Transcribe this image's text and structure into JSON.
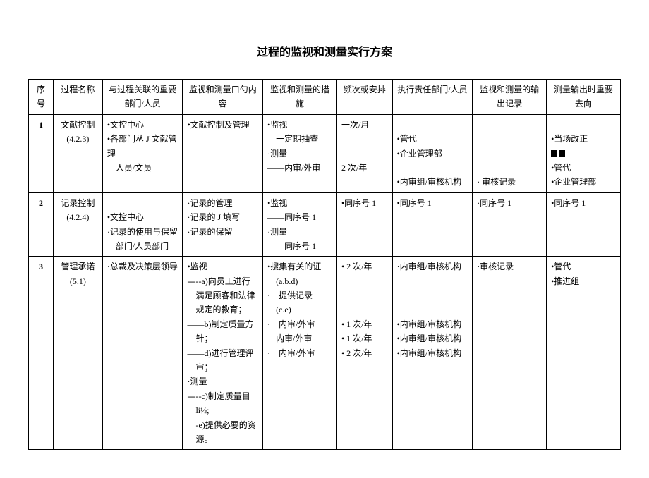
{
  "title": "过程的监视和测量实行方案",
  "headers": {
    "seq": "序号",
    "name": "过程名称",
    "dept": "与过程关联的重要部门/人员",
    "content": "监视和测量口勺内容",
    "measure": "监视和测量的措施",
    "freq": "频次或安排",
    "resp": "执行责任部门/人员",
    "output": "监视和测量的输出记录",
    "to": "测量输出时重要去向"
  },
  "rows": [
    {
      "seq": "1",
      "name": "文献控制\n(4.2.3)",
      "dept": "•文控中心\n•各部门丛 J 文献管理\n　人员/文员",
      "content": "•文献控制及管理",
      "measure": "•监视\n　一定期抽查\n·测量\n——内审/外审",
      "freq": "一次/月\n\n\n2 次/年",
      "resp": "\n•管代\n•企业管理部\n\n•内审组/审核机构",
      "output": "\n\n\n\n· 审核记录",
      "to": "\n•当场改正\n■■\n•管代\n•企业管理部"
    },
    {
      "seq": "2",
      "name": "记录控制\n(4.2.4)",
      "dept": "\n•文控中心\n·记录的使用与保留\n　部门/人员部门",
      "content": "·记录的管理\n·记录的 J 填写\n·记录的保留",
      "measure": "•监视\n——同序号 1\n·测量\n——同序号 1",
      "freq": "•同序号 1",
      "resp": "•同序号 1",
      "output": "·同序号 1",
      "to": "•同序号 1"
    },
    {
      "seq": "3",
      "name": "管理承诺(5.1)",
      "dept": "·总裁及决策层领导",
      "content": "•监视\n-----a)向员工进行\n　满足顾客和法律\n　规定的教育；\n——b)制定质量方\n　针；\n——d)进行管理评\n　审；\n·测量\n-----c)制定质量目\n　li½;\n　-e)提供必要的资\n　源。",
      "measure": "•搜集有关的证\n　(a.b.d)\n·　提供记录\n　(c.e)\n·　内审/外审\n　内审/外审\n·　内审/外审",
      "freq": "• 2 次/年\n\n\n\n• 1 次/年\n• 1 次/年\n• 2 次/年",
      "resp": "·内审组/审核机构\n\n\n\n•内审组/审核机构\n•内审组/审核机构\n•内审组/审核机构",
      "output": "·审核记录",
      "to": "•管代\n•推进组"
    }
  ]
}
